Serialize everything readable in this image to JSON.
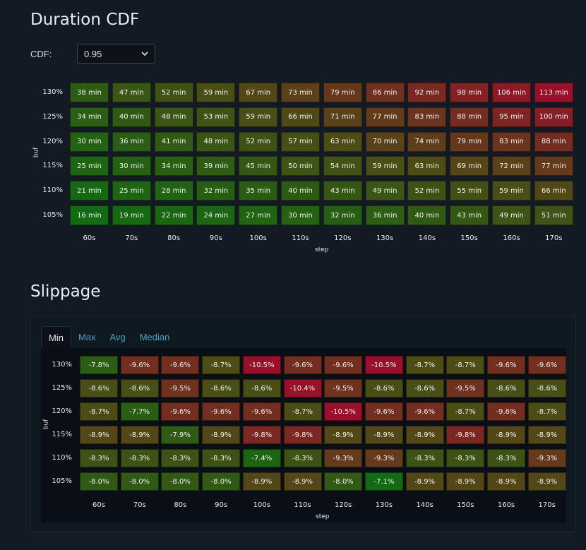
{
  "duration": {
    "title": "Duration CDF",
    "cdf_label": "CDF:",
    "cdf_value": "0.95"
  },
  "slippage": {
    "title": "Slippage",
    "tabs": [
      "Min",
      "Max",
      "Avg",
      "Median"
    ],
    "active_tab": "Min"
  },
  "colors": {
    "good": "#126a12",
    "neutral": "#4f4a16",
    "bad": "#9a0f2a",
    "page_bg": "#131a24",
    "link": "#4aa1c4"
  },
  "icons": {
    "select_arrow": "chevron-down-icon"
  },
  "chart_data": [
    {
      "type": "heatmap",
      "title": "",
      "xlabel": "step",
      "ylabel": "buf",
      "x": [
        "60s",
        "70s",
        "80s",
        "90s",
        "100s",
        "110s",
        "120s",
        "130s",
        "140s",
        "150s",
        "160s",
        "170s"
      ],
      "y": [
        "130%",
        "125%",
        "120%",
        "115%",
        "110%",
        "105%"
      ],
      "unit": "min",
      "values": [
        [
          38,
          47,
          52,
          59,
          67,
          73,
          79,
          86,
          92,
          98,
          106,
          113
        ],
        [
          34,
          40,
          48,
          53,
          59,
          66,
          71,
          77,
          83,
          88,
          95,
          100
        ],
        [
          30,
          36,
          41,
          48,
          52,
          57,
          63,
          70,
          74,
          79,
          83,
          88
        ],
        [
          25,
          30,
          34,
          39,
          45,
          50,
          54,
          59,
          63,
          69,
          72,
          77
        ],
        [
          21,
          25,
          28,
          32,
          35,
          40,
          43,
          49,
          52,
          55,
          59,
          66
        ],
        [
          16,
          19,
          22,
          24,
          27,
          30,
          32,
          36,
          40,
          43,
          49,
          51
        ]
      ],
      "labels": [
        [
          "38 min",
          "47 min",
          "52 min",
          "59 min",
          "67 min",
          "73 min",
          "79 min",
          "86 min",
          "92 min",
          "98 min",
          "106 min",
          "113 min"
        ],
        [
          "34 min",
          "40 min",
          "48 min",
          "53 min",
          "59 min",
          "66 min",
          "71 min",
          "77 min",
          "83 min",
          "88 min",
          "95 min",
          "100 min"
        ],
        [
          "30 min",
          "36 min",
          "41 min",
          "48 min",
          "52 min",
          "57 min",
          "63 min",
          "70 min",
          "74 min",
          "79 min",
          "83 min",
          "88 min"
        ],
        [
          "25 min",
          "30 min",
          "34 min",
          "39 min",
          "45 min",
          "50 min",
          "54 min",
          "59 min",
          "63 min",
          "69 min",
          "72 min",
          "77 min"
        ],
        [
          "21 min",
          "25 min",
          "28 min",
          "32 min",
          "35 min",
          "40 min",
          "43 min",
          "49 min",
          "52 min",
          "55 min",
          "59 min",
          "66 min"
        ],
        [
          "16 min",
          "19 min",
          "22 min",
          "24 min",
          "27 min",
          "30 min",
          "32 min",
          "36 min",
          "40 min",
          "43 min",
          "49 min",
          "51 min"
        ]
      ],
      "color_range": [
        16,
        113
      ]
    },
    {
      "type": "heatmap",
      "title": "",
      "xlabel": "step",
      "ylabel": "buf",
      "x": [
        "60s",
        "70s",
        "80s",
        "90s",
        "100s",
        "110s",
        "120s",
        "130s",
        "140s",
        "150s",
        "160s",
        "170s"
      ],
      "y": [
        "130%",
        "125%",
        "120%",
        "115%",
        "110%",
        "105%"
      ],
      "unit": "%",
      "values": [
        [
          -7.8,
          -9.6,
          -9.6,
          -8.7,
          -10.5,
          -9.6,
          -9.6,
          -10.5,
          -8.7,
          -8.7,
          -9.6,
          -9.6
        ],
        [
          -8.6,
          -8.6,
          -9.5,
          -8.6,
          -8.6,
          -10.4,
          -9.5,
          -8.6,
          -8.6,
          -9.5,
          -8.6,
          -8.6
        ],
        [
          -8.7,
          -7.7,
          -9.6,
          -9.6,
          -9.6,
          -8.7,
          -10.5,
          -9.6,
          -9.6,
          -8.7,
          -9.6,
          -8.7
        ],
        [
          -8.9,
          -8.9,
          -7.9,
          -8.9,
          -9.8,
          -9.8,
          -8.9,
          -8.9,
          -8.9,
          -9.8,
          -8.9,
          -8.9
        ],
        [
          -8.3,
          -8.3,
          -8.3,
          -8.3,
          -7.4,
          -8.3,
          -9.3,
          -9.3,
          -8.3,
          -8.3,
          -8.3,
          -9.3
        ],
        [
          -8.0,
          -8.0,
          -8.0,
          -8.0,
          -8.9,
          -8.9,
          -8.0,
          -7.1,
          -8.9,
          -8.9,
          -8.9,
          -8.9
        ]
      ],
      "labels": [
        [
          "-7.8%",
          "-9.6%",
          "-9.6%",
          "-8.7%",
          "-10.5%",
          "-9.6%",
          "-9.6%",
          "-10.5%",
          "-8.7%",
          "-8.7%",
          "-9.6%",
          "-9.6%"
        ],
        [
          "-8.6%",
          "-8.6%",
          "-9.5%",
          "-8.6%",
          "-8.6%",
          "-10.4%",
          "-9.5%",
          "-8.6%",
          "-8.6%",
          "-9.5%",
          "-8.6%",
          "-8.6%"
        ],
        [
          "-8.7%",
          "-7.7%",
          "-9.6%",
          "-9.6%",
          "-9.6%",
          "-8.7%",
          "-10.5%",
          "-9.6%",
          "-9.6%",
          "-8.7%",
          "-9.6%",
          "-8.7%"
        ],
        [
          "-8.9%",
          "-8.9%",
          "-7.9%",
          "-8.9%",
          "-9.8%",
          "-9.8%",
          "-8.9%",
          "-8.9%",
          "-8.9%",
          "-9.8%",
          "-8.9%",
          "-8.9%"
        ],
        [
          "-8.3%",
          "-8.3%",
          "-8.3%",
          "-8.3%",
          "-7.4%",
          "-8.3%",
          "-9.3%",
          "-9.3%",
          "-8.3%",
          "-8.3%",
          "-8.3%",
          "-9.3%"
        ],
        [
          "-8.0%",
          "-8.0%",
          "-8.0%",
          "-8.0%",
          "-8.9%",
          "-8.9%",
          "-8.0%",
          "-7.1%",
          "-8.9%",
          "-8.9%",
          "-8.9%",
          "-8.9%"
        ]
      ],
      "color_range": [
        -7.1,
        -10.5
      ]
    }
  ]
}
